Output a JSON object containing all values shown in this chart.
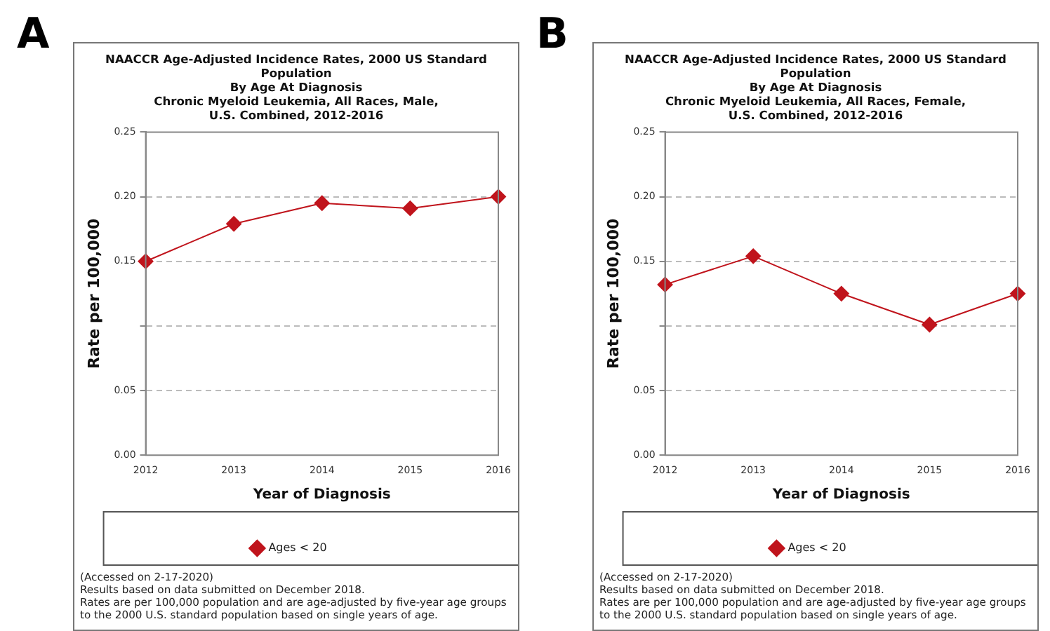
{
  "chart_data": [
    {
      "type": "line",
      "title": "NAACCR Age-Adjusted Incidence Rates, 2000 US Standard Population\nBy Age At Diagnosis\nChronic Myeloid Leukemia, All Races, Male,\nU.S. Combined, 2012-2016",
      "xlabel": "Year of Diagnosis",
      "ylabel": "Rate per 100,000",
      "categories": [
        "2012",
        "2013",
        "2014",
        "2015",
        "2016"
      ],
      "series": [
        {
          "name": "Ages < 20",
          "color": "#c0141c",
          "values": [
            0.15,
            0.179,
            0.195,
            0.191,
            0.2
          ]
        }
      ],
      "ylim": [
        0,
        0.25
      ],
      "yticks": [
        {
          "value": 0,
          "label": "0.00"
        },
        {
          "value": 0.05,
          "label": "0.05"
        },
        {
          "value": 0.1,
          "label": null
        },
        {
          "value": 0.15,
          "label": "0.15"
        },
        {
          "value": 0.2,
          "label": "0.20"
        },
        {
          "value": 0.25,
          "label": "0.25"
        }
      ],
      "grid": "y",
      "legend": "bottom",
      "marker": "diamond",
      "line_style": "solid",
      "annotations": [
        "A",
        "(Accessed on 2-17-2020)",
        "Results based on data submitted on December 2018.",
        "Rates are per 100,000 population and are age-adjusted by five-year age groups to the 2000 U.S. standard population based on single years of age."
      ]
    },
    {
      "type": "line",
      "title": "NAACCR Age-Adjusted Incidence Rates, 2000 US Standard Population\nBy Age At Diagnosis\nChronic Myeloid Leukemia, All Races, Female,\nU.S. Combined, 2012-2016",
      "xlabel": "Year of Diagnosis",
      "ylabel": "Rate per 100,000",
      "categories": [
        "2012",
        "2013",
        "2014",
        "2015",
        "2016"
      ],
      "series": [
        {
          "name": "Ages < 20",
          "color": "#c0141c",
          "values": [
            0.132,
            0.154,
            0.125,
            0.101,
            0.125
          ]
        }
      ],
      "ylim": [
        0,
        0.25
      ],
      "yticks": [
        {
          "value": 0,
          "label": "0.00"
        },
        {
          "value": 0.05,
          "label": "0.05"
        },
        {
          "value": 0.1,
          "label": null
        },
        {
          "value": 0.15,
          "label": "0.15"
        },
        {
          "value": 0.2,
          "label": "0.20"
        },
        {
          "value": 0.25,
          "label": "0.25"
        }
      ],
      "grid": "y",
      "legend": "bottom",
      "marker": "diamond",
      "line_style": "solid",
      "annotations": [
        "B",
        "(Accessed on 2-17-2020)",
        "Results based on data submitted on December 2018.",
        "Rates are per 100,000 population and are age-adjusted by five-year age groups to the 2000 U.S. standard population based on single years of age."
      ]
    }
  ]
}
